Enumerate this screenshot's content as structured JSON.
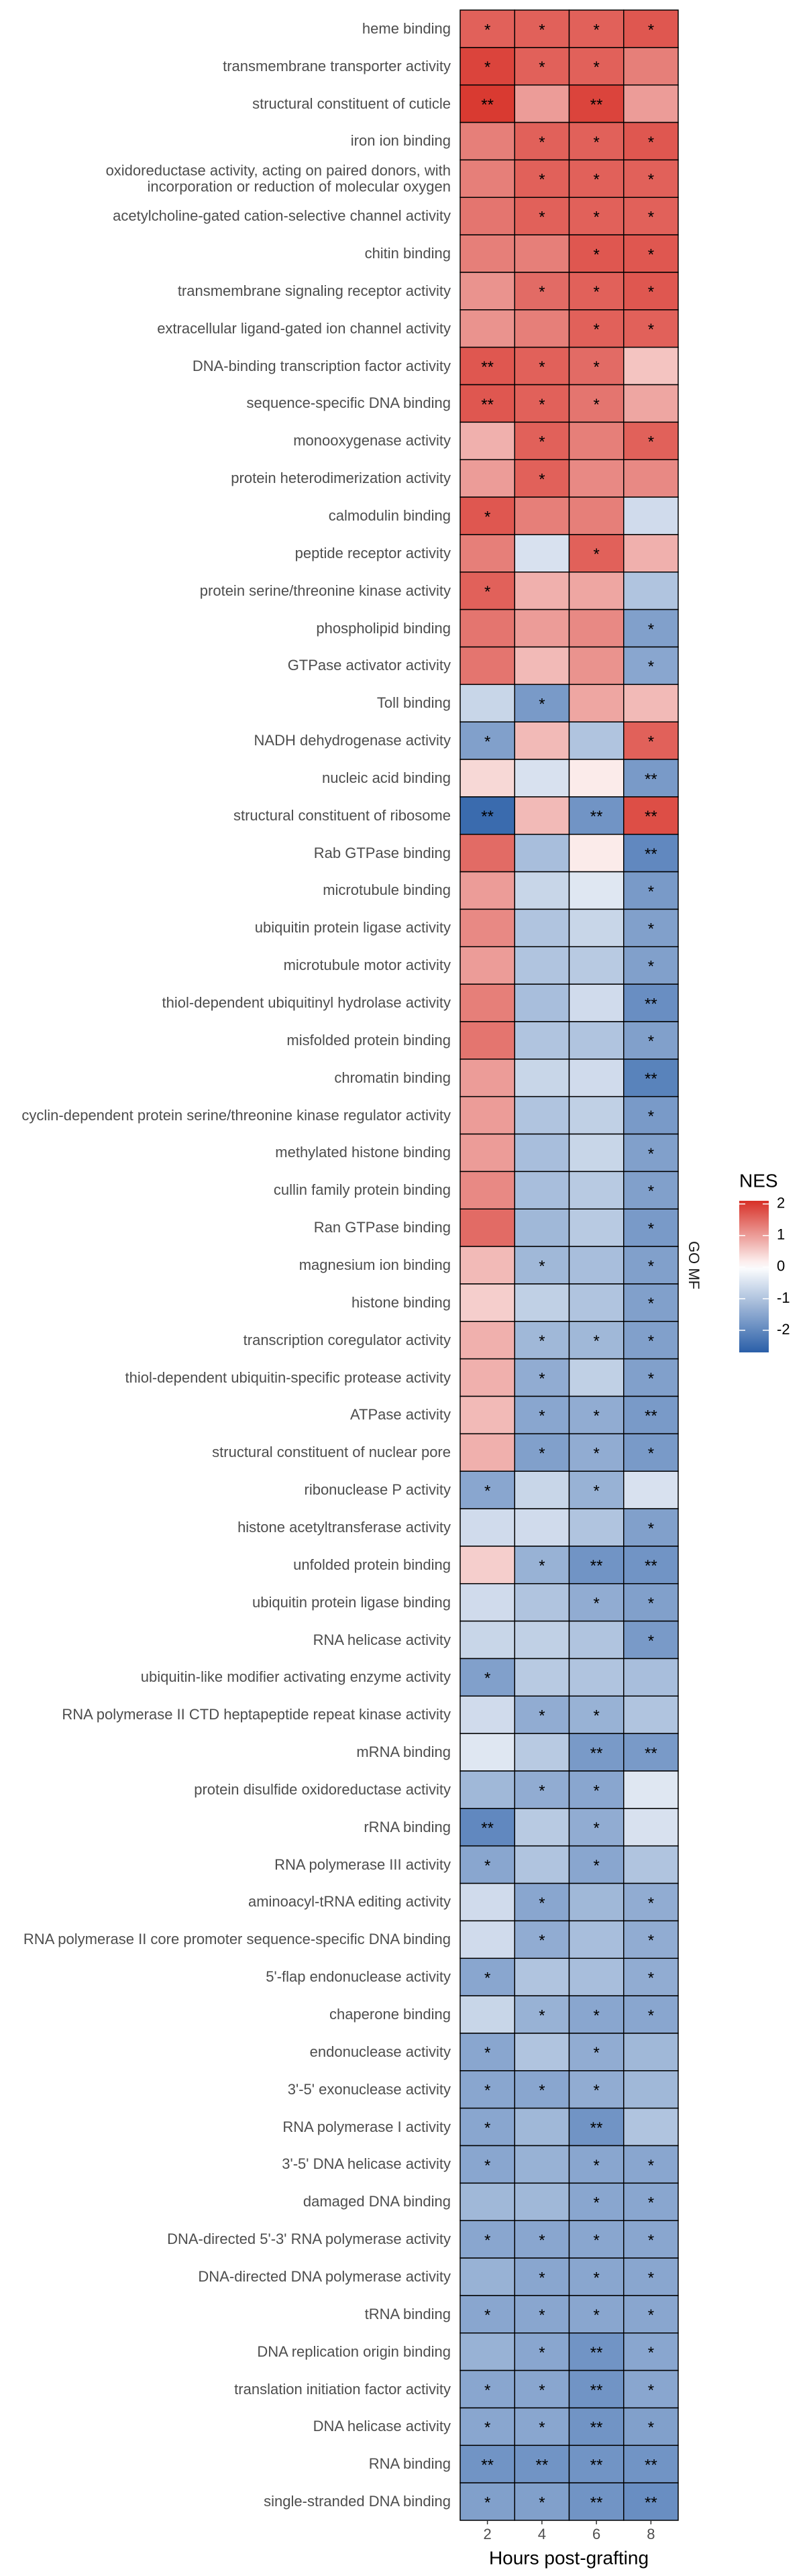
{
  "chart_data": {
    "type": "heatmap",
    "x_label": "Hours post-grafting",
    "facet_label": "GO MF",
    "legend_title": "NES",
    "x": [
      2,
      4,
      6,
      8
    ],
    "categories": [
      "heme binding",
      "transmembrane transporter activity",
      "structural constituent of cuticle",
      "iron ion binding",
      "oxidoreductase activity, acting on paired donors, with incorporation or reduction of molecular oxygen",
      "acetylcholine-gated cation-selective channel activity",
      "chitin binding",
      "transmembrane signaling receptor activity",
      "extracellular ligand-gated ion channel activity",
      "DNA-binding transcription factor activity",
      "sequence-specific DNA binding",
      "monooxygenase activity",
      "protein heterodimerization activity",
      "calmodulin binding",
      "peptide receptor activity",
      "protein serine/threonine kinase activity",
      "phospholipid binding",
      "GTPase activator activity",
      "Toll binding",
      "NADH dehydrogenase activity",
      "nucleic acid binding",
      "structural constituent of ribosome",
      "Rab GTPase binding",
      "microtubule binding",
      "ubiquitin protein ligase activity",
      "microtubule motor activity",
      "thiol-dependent ubiquitinyl hydrolase activity",
      "misfolded protein binding",
      "chromatin binding",
      "cyclin-dependent protein serine/threonine kinase regulator activity",
      "methylated histone binding",
      "cullin family protein binding",
      "Ran GTPase binding",
      "magnesium ion binding",
      "histone binding",
      "transcription coregulator activity",
      "thiol-dependent ubiquitin-specific protease activity",
      "ATPase activity",
      "structural constituent of nuclear pore",
      "ribonuclease P activity",
      "histone acetyltransferase activity",
      "unfolded protein binding",
      "ubiquitin protein ligase binding",
      "RNA helicase activity",
      "ubiquitin-like modifier activating enzyme activity",
      "RNA polymerase II CTD heptapeptide repeat kinase activity",
      "mRNA binding",
      "protein disulfide oxidoreductase activity",
      "rRNA binding",
      "RNA polymerase III activity",
      "aminoacyl-tRNA editing activity",
      "RNA polymerase II core promoter sequence-specific DNA binding",
      "5'-flap endonuclease activity",
      "chaperone binding",
      "endonuclease activity",
      "3'-5' exonuclease activity",
      "RNA polymerase I activity",
      "3'-5' DNA helicase activity",
      "damaged DNA binding",
      "DNA-directed 5'-3' RNA polymerase activity",
      "DNA-directed DNA polymerase activity",
      "tRNA binding",
      "DNA replication origin binding",
      "translation initiation factor activity",
      "DNA helicase activity",
      "RNA binding",
      "single-stranded DNA binding"
    ],
    "values": [
      [
        1.6,
        1.6,
        1.6,
        1.7
      ],
      [
        1.9,
        1.6,
        1.6,
        1.3
      ],
      [
        2.0,
        1.0,
        1.9,
        1.0
      ],
      [
        1.3,
        1.6,
        1.6,
        1.7
      ],
      [
        1.3,
        1.6,
        1.6,
        1.6
      ],
      [
        1.4,
        1.6,
        1.6,
        1.6
      ],
      [
        1.3,
        1.3,
        1.7,
        1.7
      ],
      [
        1.1,
        1.5,
        1.6,
        1.7
      ],
      [
        1.1,
        1.3,
        1.6,
        1.6
      ],
      [
        1.7,
        1.6,
        1.5,
        0.6
      ],
      [
        1.7,
        1.6,
        1.4,
        0.9
      ],
      [
        0.8,
        1.6,
        1.3,
        1.6
      ],
      [
        1.0,
        1.6,
        1.2,
        1.2
      ],
      [
        1.7,
        1.3,
        1.3,
        -0.6
      ],
      [
        1.3,
        -0.5,
        1.6,
        0.8
      ],
      [
        1.6,
        0.8,
        0.9,
        -1.0
      ],
      [
        1.4,
        1.0,
        1.2,
        -1.6
      ],
      [
        1.4,
        0.7,
        1.1,
        -1.5
      ],
      [
        -0.7,
        -1.7,
        0.9,
        0.7
      ],
      [
        -1.6,
        0.7,
        -1.0,
        1.6
      ],
      [
        0.4,
        -0.5,
        0.2,
        -1.7
      ],
      [
        -2.5,
        0.7,
        -1.8,
        1.8
      ],
      [
        1.5,
        -1.1,
        0.2,
        -2.0
      ],
      [
        1.0,
        -0.7,
        -0.4,
        -1.7
      ],
      [
        1.2,
        -1.0,
        -0.7,
        -1.6
      ],
      [
        1.0,
        -1.0,
        -0.9,
        -1.6
      ],
      [
        1.3,
        -1.1,
        -0.6,
        -1.9
      ],
      [
        1.4,
        -1.0,
        -1.0,
        -1.6
      ],
      [
        1.0,
        -0.7,
        -0.6,
        -2.1
      ],
      [
        1.0,
        -1.0,
        -0.8,
        -1.7
      ],
      [
        1.0,
        -1.1,
        -0.7,
        -1.6
      ],
      [
        1.2,
        -1.1,
        -0.9,
        -1.6
      ],
      [
        1.5,
        -1.2,
        -0.9,
        -1.7
      ],
      [
        0.7,
        -1.2,
        -1.1,
        -1.6
      ],
      [
        0.5,
        -0.8,
        -1.0,
        -1.6
      ],
      [
        0.8,
        -1.2,
        -1.2,
        -1.6
      ],
      [
        0.8,
        -1.4,
        -0.8,
        -1.6
      ],
      [
        0.7,
        -1.5,
        -1.4,
        -1.7
      ],
      [
        0.8,
        -1.6,
        -1.4,
        -1.7
      ],
      [
        -1.5,
        -0.7,
        -1.3,
        -0.5
      ],
      [
        -0.6,
        -0.6,
        -1.0,
        -1.6
      ],
      [
        0.5,
        -1.3,
        -1.8,
        -1.8
      ],
      [
        -0.6,
        -1.0,
        -1.4,
        -1.6
      ],
      [
        -0.7,
        -0.8,
        -1.0,
        -1.7
      ],
      [
        -1.6,
        -0.9,
        -1.0,
        -1.1
      ],
      [
        -0.6,
        -1.4,
        -1.3,
        -1.0
      ],
      [
        -0.4,
        -0.9,
        -1.7,
        -1.7
      ],
      [
        -1.2,
        -1.4,
        -1.5,
        -0.4
      ],
      [
        -2.0,
        -0.9,
        -1.4,
        -0.5
      ],
      [
        -1.5,
        -1.0,
        -1.5,
        -1.0
      ],
      [
        -0.6,
        -1.5,
        -1.2,
        -1.4
      ],
      [
        -0.6,
        -1.4,
        -1.1,
        -1.4
      ],
      [
        -1.5,
        -1.0,
        -1.1,
        -1.4
      ],
      [
        -0.7,
        -1.3,
        -1.5,
        -1.5
      ],
      [
        -1.5,
        -1.0,
        -1.4,
        -1.2
      ],
      [
        -1.5,
        -1.5,
        -1.4,
        -1.2
      ],
      [
        -1.5,
        -1.2,
        -1.8,
        -1.0
      ],
      [
        -1.5,
        -1.3,
        -1.5,
        -1.5
      ],
      [
        -1.2,
        -1.2,
        -1.5,
        -1.5
      ],
      [
        -1.5,
        -1.5,
        -1.5,
        -1.5
      ],
      [
        -1.3,
        -1.5,
        -1.5,
        -1.5
      ],
      [
        -1.5,
        -1.5,
        -1.5,
        -1.5
      ],
      [
        -1.3,
        -1.5,
        -1.8,
        -1.5
      ],
      [
        -1.5,
        -1.5,
        -1.8,
        -1.5
      ],
      [
        -1.5,
        -1.5,
        -1.8,
        -1.6
      ],
      [
        -1.8,
        -1.8,
        -1.8,
        -1.8
      ],
      [
        -1.6,
        -1.6,
        -1.8,
        -1.9
      ]
    ],
    "significance": [
      [
        "*",
        "*",
        "*",
        "*"
      ],
      [
        "*",
        "*",
        "*",
        null
      ],
      [
        "**",
        null,
        "**",
        null
      ],
      [
        null,
        "*",
        "*",
        "*"
      ],
      [
        null,
        "*",
        "*",
        "*"
      ],
      [
        null,
        "*",
        "*",
        "*"
      ],
      [
        null,
        null,
        "*",
        "*"
      ],
      [
        null,
        "*",
        "*",
        "*"
      ],
      [
        null,
        null,
        "*",
        "*"
      ],
      [
        "**",
        "*",
        "*",
        null
      ],
      [
        "**",
        "*",
        "*",
        null
      ],
      [
        null,
        "*",
        null,
        "*"
      ],
      [
        null,
        "*",
        null,
        null
      ],
      [
        "*",
        null,
        null,
        null
      ],
      [
        null,
        null,
        "*",
        null
      ],
      [
        "*",
        null,
        null,
        null
      ],
      [
        null,
        null,
        null,
        "*"
      ],
      [
        null,
        null,
        null,
        "*"
      ],
      [
        null,
        "*",
        null,
        null
      ],
      [
        "*",
        null,
        null,
        "*"
      ],
      [
        null,
        null,
        null,
        "**"
      ],
      [
        "**",
        null,
        "**",
        "**"
      ],
      [
        null,
        null,
        null,
        "**"
      ],
      [
        null,
        null,
        null,
        "*"
      ],
      [
        null,
        null,
        null,
        "*"
      ],
      [
        null,
        null,
        null,
        "*"
      ],
      [
        null,
        null,
        null,
        "**"
      ],
      [
        null,
        null,
        null,
        "*"
      ],
      [
        null,
        null,
        null,
        "**"
      ],
      [
        null,
        null,
        null,
        "*"
      ],
      [
        null,
        null,
        null,
        "*"
      ],
      [
        null,
        null,
        null,
        "*"
      ],
      [
        null,
        null,
        null,
        "*"
      ],
      [
        null,
        "*",
        null,
        "*"
      ],
      [
        null,
        null,
        null,
        "*"
      ],
      [
        null,
        "*",
        "*",
        "*"
      ],
      [
        null,
        "*",
        null,
        "*"
      ],
      [
        null,
        "*",
        "*",
        "**"
      ],
      [
        null,
        "*",
        "*",
        "*"
      ],
      [
        "*",
        null,
        "*",
        null
      ],
      [
        null,
        null,
        null,
        "*"
      ],
      [
        null,
        "*",
        "**",
        "**"
      ],
      [
        null,
        null,
        "*",
        "*"
      ],
      [
        null,
        null,
        null,
        "*"
      ],
      [
        "*",
        null,
        null,
        null
      ],
      [
        null,
        "*",
        "*",
        null
      ],
      [
        null,
        null,
        "**",
        "**"
      ],
      [
        null,
        "*",
        "*",
        null
      ],
      [
        "**",
        null,
        "*",
        null
      ],
      [
        "*",
        null,
        "*",
        null
      ],
      [
        null,
        "*",
        null,
        "*"
      ],
      [
        null,
        "*",
        null,
        "*"
      ],
      [
        "*",
        null,
        null,
        "*"
      ],
      [
        null,
        "*",
        "*",
        "*"
      ],
      [
        "*",
        null,
        "*",
        null
      ],
      [
        "*",
        "*",
        "*",
        null
      ],
      [
        "*",
        null,
        "**",
        null
      ],
      [
        "*",
        null,
        "*",
        "*"
      ],
      [
        null,
        null,
        "*",
        "*"
      ],
      [
        "*",
        "*",
        "*",
        "*"
      ],
      [
        null,
        "*",
        "*",
        "*"
      ],
      [
        "*",
        "*",
        "*",
        "*"
      ],
      [
        null,
        "*",
        "**",
        "*"
      ],
      [
        "*",
        "*",
        "**",
        "*"
      ],
      [
        "*",
        "*",
        "**",
        "*"
      ],
      [
        "**",
        "**",
        "**",
        "**"
      ],
      [
        "*",
        "*",
        "**",
        "**"
      ]
    ],
    "clim": [
      -2.7,
      2.1
    ],
    "colorbar_ticks": [
      2,
      1,
      0,
      -1,
      -2
    ],
    "low_color": "#2a5fa8",
    "mid_color": "#ffffff",
    "high_color": "#d73027",
    "tile_border": "#000000"
  }
}
